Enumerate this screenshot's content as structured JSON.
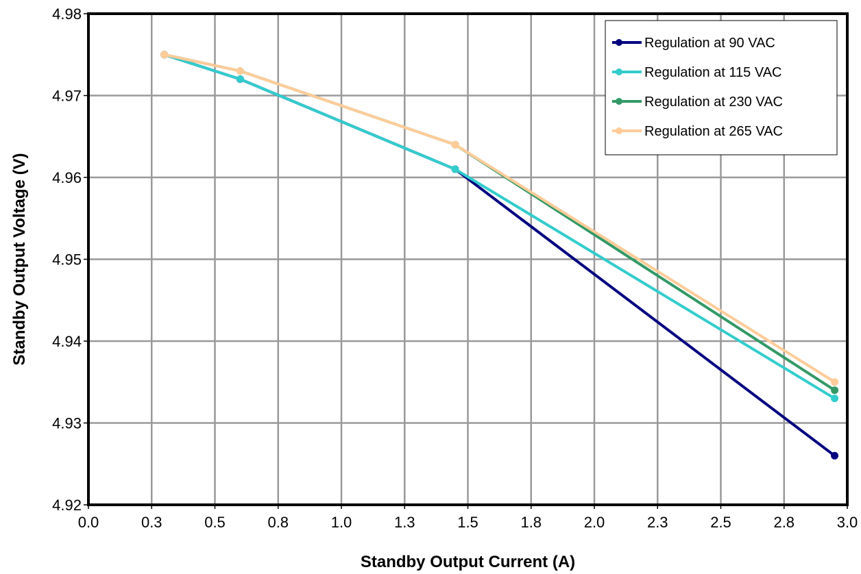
{
  "chart_data": {
    "type": "line",
    "title": "",
    "xlabel": "Standby Output Current (A)",
    "ylabel": "Standby Output Voltage (V)",
    "xlim": [
      0,
      3
    ],
    "ylim": [
      4.92,
      4.98
    ],
    "x_ticks": [
      "0.0",
      "0.3",
      "0.5",
      "0.8",
      "1.0",
      "1.3",
      "1.5",
      "1.8",
      "2.0",
      "2.3",
      "2.5",
      "2.8",
      "3.0"
    ],
    "y_ticks": [
      "4.92",
      "4.93",
      "4.94",
      "4.95",
      "4.96",
      "4.97",
      "4.98"
    ],
    "grid": true,
    "legend_position": "top-right",
    "series": [
      {
        "name": "Regulation at 90 VAC",
        "color": "#000080",
        "x": [
          0.3,
          0.6,
          1.45,
          2.95
        ],
        "y": [
          4.975,
          4.972,
          4.961,
          4.926
        ]
      },
      {
        "name": "Regulation at 115 VAC",
        "color": "#33CCCC",
        "x": [
          0.3,
          0.6,
          1.45,
          2.95
        ],
        "y": [
          4.975,
          4.972,
          4.961,
          4.933
        ]
      },
      {
        "name": "Regulation at 230 VAC",
        "color": "#339966",
        "x": [
          0.3,
          0.6,
          1.45,
          2.95
        ],
        "y": [
          4.975,
          4.973,
          4.964,
          4.934
        ]
      },
      {
        "name": "Regulation at 265 VAC",
        "color": "#FFCC99",
        "x": [
          0.3,
          0.6,
          1.45,
          2.95
        ],
        "y": [
          4.975,
          4.973,
          4.964,
          4.935
        ]
      }
    ]
  }
}
